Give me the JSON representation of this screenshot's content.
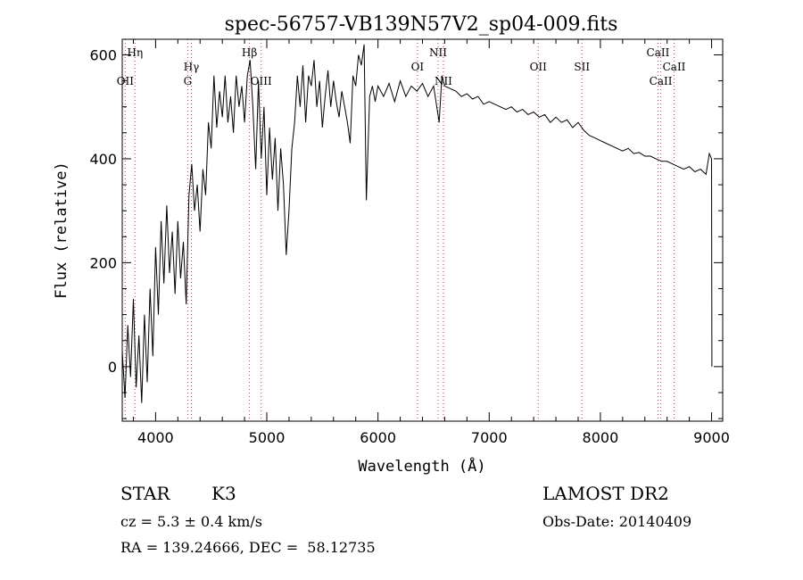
{
  "chart_data": {
    "type": "line",
    "title": "spec-56757-VB139N57V2_sp04-009.fits",
    "xlabel": "Wavelength (Å)",
    "ylabel": "Flux (relative)",
    "xlim": [
      3700,
      9100
    ],
    "ylim": [
      -105,
      630
    ],
    "xticks": [
      4000,
      5000,
      6000,
      7000,
      8000,
      9000
    ],
    "yticks": [
      0,
      200,
      400,
      600
    ],
    "grid": false,
    "series": [
      {
        "name": "spectrum",
        "points": [
          [
            3700,
            30
          ],
          [
            3725,
            -60
          ],
          [
            3750,
            80
          ],
          [
            3775,
            -20
          ],
          [
            3800,
            130
          ],
          [
            3825,
            -40
          ],
          [
            3850,
            60
          ],
          [
            3875,
            -70
          ],
          [
            3900,
            100
          ],
          [
            3925,
            -30
          ],
          [
            3950,
            150
          ],
          [
            3975,
            20
          ],
          [
            4000,
            230
          ],
          [
            4025,
            100
          ],
          [
            4050,
            280
          ],
          [
            4075,
            160
          ],
          [
            4100,
            310
          ],
          [
            4125,
            180
          ],
          [
            4150,
            260
          ],
          [
            4175,
            140
          ],
          [
            4200,
            280
          ],
          [
            4225,
            170
          ],
          [
            4250,
            240
          ],
          [
            4275,
            120
          ],
          [
            4300,
            330
          ],
          [
            4325,
            390
          ],
          [
            4350,
            300
          ],
          [
            4375,
            350
          ],
          [
            4400,
            260
          ],
          [
            4425,
            380
          ],
          [
            4450,
            330
          ],
          [
            4475,
            470
          ],
          [
            4500,
            420
          ],
          [
            4525,
            560
          ],
          [
            4550,
            460
          ],
          [
            4575,
            530
          ],
          [
            4600,
            480
          ],
          [
            4625,
            560
          ],
          [
            4650,
            470
          ],
          [
            4675,
            520
          ],
          [
            4700,
            450
          ],
          [
            4725,
            560
          ],
          [
            4750,
            500
          ],
          [
            4775,
            540
          ],
          [
            4800,
            470
          ],
          [
            4825,
            560
          ],
          [
            4850,
            590
          ],
          [
            4875,
            500
          ],
          [
            4900,
            380
          ],
          [
            4925,
            550
          ],
          [
            4950,
            400
          ],
          [
            4975,
            500
          ],
          [
            5000,
            330
          ],
          [
            5025,
            460
          ],
          [
            5050,
            360
          ],
          [
            5075,
            440
          ],
          [
            5100,
            300
          ],
          [
            5125,
            420
          ],
          [
            5150,
            350
          ],
          [
            5175,
            215
          ],
          [
            5200,
            300
          ],
          [
            5225,
            420
          ],
          [
            5250,
            470
          ],
          [
            5275,
            560
          ],
          [
            5300,
            500
          ],
          [
            5325,
            580
          ],
          [
            5350,
            470
          ],
          [
            5375,
            560
          ],
          [
            5400,
            540
          ],
          [
            5425,
            590
          ],
          [
            5450,
            500
          ],
          [
            5475,
            550
          ],
          [
            5500,
            460
          ],
          [
            5525,
            520
          ],
          [
            5550,
            570
          ],
          [
            5575,
            500
          ],
          [
            5600,
            550
          ],
          [
            5625,
            510
          ],
          [
            5650,
            480
          ],
          [
            5675,
            530
          ],
          [
            5700,
            500
          ],
          [
            5725,
            470
          ],
          [
            5750,
            430
          ],
          [
            5775,
            560
          ],
          [
            5800,
            540
          ],
          [
            5825,
            600
          ],
          [
            5850,
            580
          ],
          [
            5875,
            620
          ],
          [
            5895,
            320
          ],
          [
            5925,
            520
          ],
          [
            5950,
            540
          ],
          [
            5975,
            510
          ],
          [
            6000,
            540
          ],
          [
            6050,
            520
          ],
          [
            6100,
            545
          ],
          [
            6150,
            510
          ],
          [
            6200,
            550
          ],
          [
            6250,
            520
          ],
          [
            6300,
            540
          ],
          [
            6350,
            530
          ],
          [
            6400,
            545
          ],
          [
            6450,
            520
          ],
          [
            6500,
            540
          ],
          [
            6550,
            470
          ],
          [
            6575,
            560
          ],
          [
            6600,
            540
          ],
          [
            6650,
            535
          ],
          [
            6700,
            530
          ],
          [
            6750,
            520
          ],
          [
            6800,
            525
          ],
          [
            6850,
            515
          ],
          [
            6900,
            520
          ],
          [
            6950,
            505
          ],
          [
            7000,
            510
          ],
          [
            7050,
            505
          ],
          [
            7100,
            500
          ],
          [
            7150,
            495
          ],
          [
            7200,
            500
          ],
          [
            7250,
            490
          ],
          [
            7300,
            495
          ],
          [
            7350,
            485
          ],
          [
            7400,
            490
          ],
          [
            7450,
            480
          ],
          [
            7500,
            485
          ],
          [
            7550,
            470
          ],
          [
            7600,
            480
          ],
          [
            7650,
            470
          ],
          [
            7700,
            475
          ],
          [
            7750,
            460
          ],
          [
            7800,
            470
          ],
          [
            7850,
            455
          ],
          [
            7900,
            445
          ],
          [
            7950,
            440
          ],
          [
            8000,
            435
          ],
          [
            8050,
            430
          ],
          [
            8100,
            425
          ],
          [
            8150,
            420
          ],
          [
            8200,
            415
          ],
          [
            8250,
            420
          ],
          [
            8300,
            410
          ],
          [
            8350,
            412
          ],
          [
            8400,
            405
          ],
          [
            8450,
            405
          ],
          [
            8500,
            400
          ],
          [
            8550,
            395
          ],
          [
            8600,
            395
          ],
          [
            8650,
            390
          ],
          [
            8700,
            385
          ],
          [
            8750,
            380
          ],
          [
            8800,
            385
          ],
          [
            8850,
            375
          ],
          [
            8900,
            380
          ],
          [
            8950,
            370
          ],
          [
            8980,
            410
          ],
          [
            9000,
            400
          ],
          [
            9003,
            0
          ]
        ]
      }
    ],
    "line_markers": [
      {
        "label": "OII",
        "wavelength": 3727
      },
      {
        "label": "Hη",
        "wavelength": 3815
      },
      {
        "label": "G",
        "wavelength": 4289
      },
      {
        "label": "Hγ",
        "wavelength": 4322
      },
      {
        "label": "Hβ",
        "wavelength": 4844
      },
      {
        "label": "OIII",
        "wavelength": 4949
      },
      {
        "label": "OI",
        "wavelength": 6355
      },
      {
        "label": "NII",
        "wavelength": 6540
      },
      {
        "label": "NII",
        "wavelength": 6588
      },
      {
        "label": "OII",
        "wavelength": 7441
      },
      {
        "label": "SII",
        "wavelength": 7834
      },
      {
        "label": "CaII",
        "wavelength": 8518
      },
      {
        "label": "CaII",
        "wavelength": 8543
      },
      {
        "label": "CaII",
        "wavelength": 8663
      }
    ],
    "marker_color": "#c04040"
  },
  "info": {
    "object_class": "STAR",
    "subclass": "K3",
    "survey": "LAMOST DR2",
    "redshift": "cz = 5.3 ± 0.4 km/s",
    "obs_date": "Obs-Date: 20140409",
    "coords": "RA = 139.24666, DEC =  58.12735"
  }
}
